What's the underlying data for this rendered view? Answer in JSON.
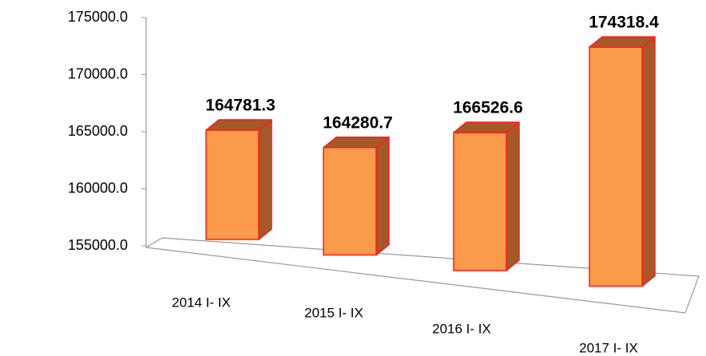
{
  "chart_data": {
    "type": "bar3d",
    "categories": [
      "2014 I- IX",
      "2015 I- IX",
      "2016 I- IX",
      "2017 I- IX"
    ],
    "values": [
      164781.3,
      164280.7,
      166526.6,
      174318.4
    ],
    "color": "#f99b4a",
    "side_color": "#a35a28",
    "edge_color": "#ff1a1a",
    "ylim": [
      155000,
      175000
    ],
    "yticks": [
      {
        "value": 155000,
        "label": "155000.0"
      },
      {
        "value": 160000,
        "label": "160000.0"
      },
      {
        "value": 165000,
        "label": "165000.0"
      },
      {
        "value": 170000,
        "label": "170000.0"
      },
      {
        "value": 175000,
        "label": "175000.0"
      }
    ]
  }
}
